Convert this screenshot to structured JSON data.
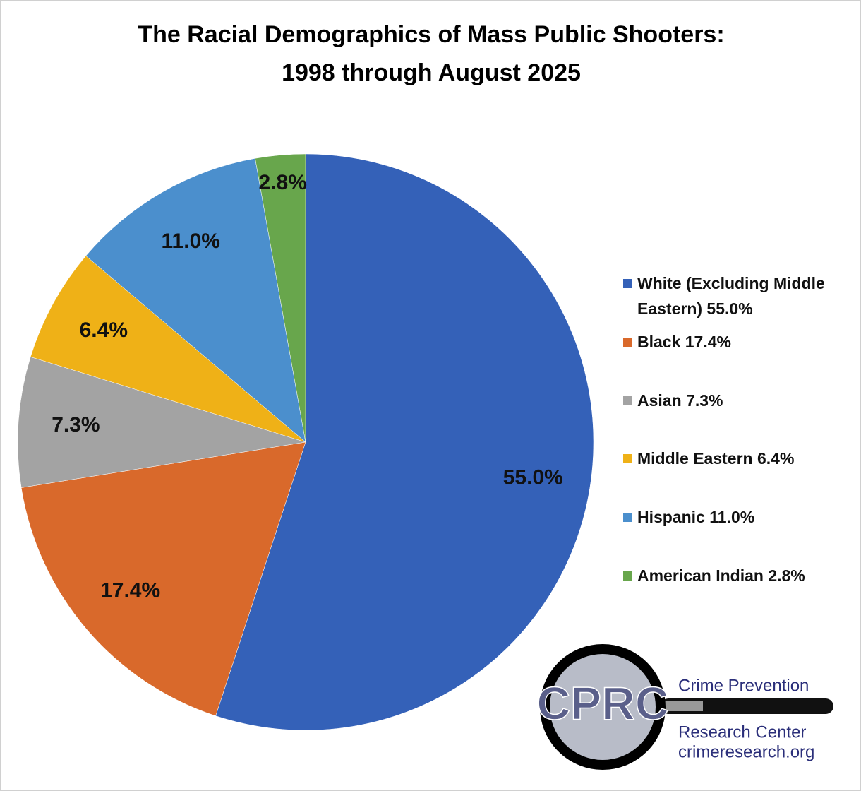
{
  "chart_data": {
    "type": "pie",
    "title_lines": [
      "The Racial Demographics of Mass Public Shooters:",
      "1998 through August 2025"
    ],
    "categories": [
      "White (Excluding Middle Eastern) 55.0%",
      "Black 17.4%",
      "Asian 7.3%",
      "Middle Eastern 6.4%",
      "Hispanic 11.0%",
      "American Indian 2.8%"
    ],
    "values": [
      55.0,
      17.4,
      7.3,
      6.4,
      11.0,
      2.8
    ],
    "value_labels": [
      "55.0%",
      "17.4%",
      "7.3%",
      "6.4%",
      "11.0%",
      "2.8%"
    ],
    "colors": [
      "#3461b8",
      "#d9692b",
      "#a3a3a3",
      "#efb117",
      "#4b8fcd",
      "#68a64c"
    ],
    "legend": "right"
  },
  "logo": {
    "mark": "CPRC",
    "line1": "Crime Prevention",
    "line2": "Research Center",
    "url": "crimeresearch.org"
  }
}
